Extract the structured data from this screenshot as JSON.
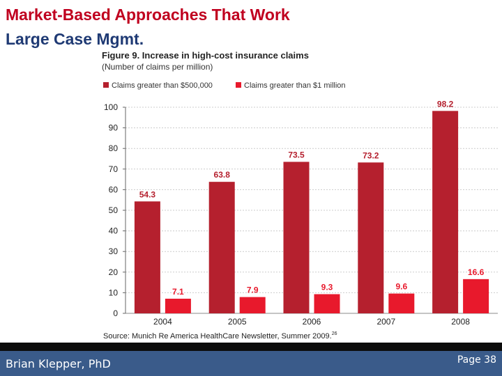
{
  "slide": {
    "title_line1": "Market-Based Approaches That Work",
    "title_line2": "Large Case Mgmt.",
    "author": "Brian Klepper, PhD",
    "page": "Page 38"
  },
  "colors": {
    "title_red": "#c0001f",
    "title_blue": "#1f3a74",
    "series_500k": "#b5202e",
    "series_1m": "#e8192c",
    "footer_bg": "#3a5b8a"
  },
  "chart_data": {
    "type": "bar",
    "title": "Figure 9. Increase in high-cost insurance claims",
    "subtitle": "(Number of claims per million)",
    "source": "Source: Munich Re America HealthCare Newsletter, Summer 2009.",
    "source_ref": "26",
    "categories": [
      "2004",
      "2005",
      "2006",
      "2007",
      "2008"
    ],
    "series": [
      {
        "name": "Claims greater than $500,000",
        "values": [
          54.3,
          63.8,
          73.5,
          73.2,
          98.2
        ],
        "labels": [
          "54.3",
          "63.8",
          "73.5",
          "73.2",
          "98.2"
        ]
      },
      {
        "name": "Claims greater than $1 million",
        "values": [
          7.1,
          7.9,
          9.3,
          9.6,
          16.6
        ],
        "labels": [
          "7.1",
          "7.9",
          "9.3",
          "9.6",
          "16.6"
        ]
      }
    ],
    "yticks": [
      0,
      10,
      20,
      30,
      40,
      50,
      60,
      70,
      80,
      90,
      100
    ],
    "ylim": [
      0,
      100
    ],
    "grid": true,
    "legend": "top-left"
  }
}
